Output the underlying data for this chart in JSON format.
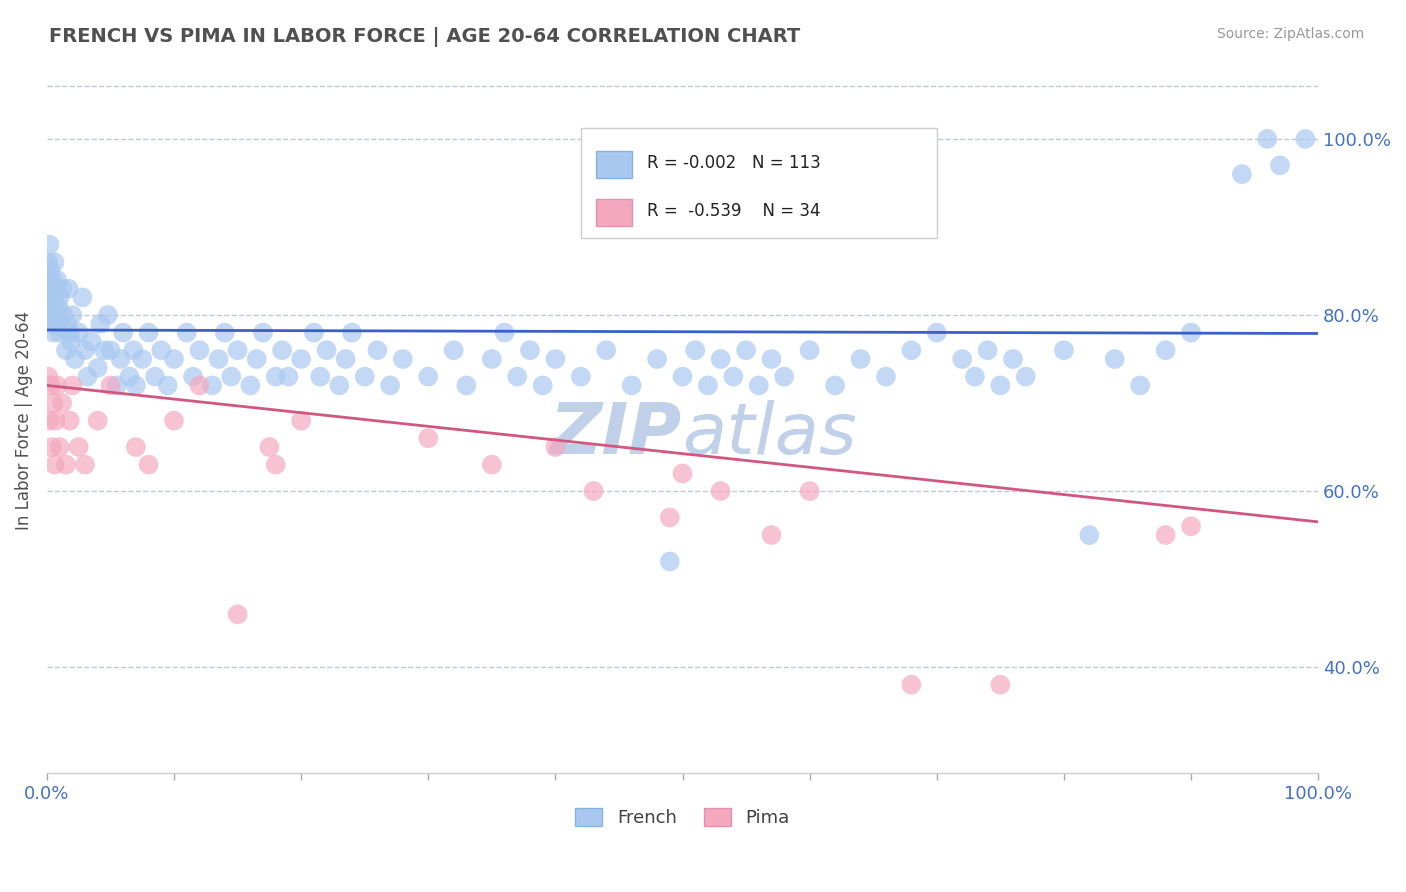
{
  "title": "FRENCH VS PIMA IN LABOR FORCE | AGE 20-64 CORRELATION CHART",
  "source_text": "Source: ZipAtlas.com",
  "ylabel": "In Labor Force | Age 20-64",
  "xlim": [
    0.0,
    1.0
  ],
  "ylim": [
    0.28,
    1.08
  ],
  "y_tick_vals_right": [
    0.4,
    0.6,
    0.8,
    1.0
  ],
  "y_tick_labels_right": [
    "40.0%",
    "60.0%",
    "80.0%",
    "100.0%"
  ],
  "legend_french_label": "French",
  "legend_pima_label": "Pima",
  "french_color": "#a8c8f0",
  "pima_color": "#f4a8c0",
  "french_line_color": "#3a5fc8",
  "pima_line_color": "#d05880",
  "background_color": "#ffffff",
  "title_color": "#505050",
  "watermark_color": "#c0d0e8",
  "gridline_color": "#c0c8d8",
  "gridline_style": "--",
  "french_points": [
    [
      0.001,
      0.84
    ],
    [
      0.001,
      0.82
    ],
    [
      0.001,
      0.86
    ],
    [
      0.002,
      0.8
    ],
    [
      0.002,
      0.83
    ],
    [
      0.002,
      0.88
    ],
    [
      0.003,
      0.82
    ],
    [
      0.003,
      0.85
    ],
    [
      0.003,
      0.79
    ],
    [
      0.004,
      0.84
    ],
    [
      0.004,
      0.81
    ],
    [
      0.005,
      0.83
    ],
    [
      0.005,
      0.78
    ],
    [
      0.006,
      0.82
    ],
    [
      0.006,
      0.86
    ],
    [
      0.007,
      0.8
    ],
    [
      0.007,
      0.83
    ],
    [
      0.008,
      0.79
    ],
    [
      0.008,
      0.84
    ],
    [
      0.009,
      0.81
    ],
    [
      0.01,
      0.82
    ],
    [
      0.01,
      0.78
    ],
    [
      0.012,
      0.83
    ],
    [
      0.013,
      0.8
    ],
    [
      0.015,
      0.76
    ],
    [
      0.016,
      0.79
    ],
    [
      0.017,
      0.83
    ],
    [
      0.018,
      0.78
    ],
    [
      0.019,
      0.77
    ],
    [
      0.02,
      0.8
    ],
    [
      0.022,
      0.75
    ],
    [
      0.025,
      0.78
    ],
    [
      0.028,
      0.82
    ],
    [
      0.03,
      0.76
    ],
    [
      0.032,
      0.73
    ],
    [
      0.035,
      0.77
    ],
    [
      0.04,
      0.74
    ],
    [
      0.042,
      0.79
    ],
    [
      0.045,
      0.76
    ],
    [
      0.048,
      0.8
    ],
    [
      0.05,
      0.76
    ],
    [
      0.055,
      0.72
    ],
    [
      0.058,
      0.75
    ],
    [
      0.06,
      0.78
    ],
    [
      0.065,
      0.73
    ],
    [
      0.068,
      0.76
    ],
    [
      0.07,
      0.72
    ],
    [
      0.075,
      0.75
    ],
    [
      0.08,
      0.78
    ],
    [
      0.085,
      0.73
    ],
    [
      0.09,
      0.76
    ],
    [
      0.095,
      0.72
    ],
    [
      0.1,
      0.75
    ],
    [
      0.11,
      0.78
    ],
    [
      0.115,
      0.73
    ],
    [
      0.12,
      0.76
    ],
    [
      0.13,
      0.72
    ],
    [
      0.135,
      0.75
    ],
    [
      0.14,
      0.78
    ],
    [
      0.145,
      0.73
    ],
    [
      0.15,
      0.76
    ],
    [
      0.16,
      0.72
    ],
    [
      0.165,
      0.75
    ],
    [
      0.17,
      0.78
    ],
    [
      0.18,
      0.73
    ],
    [
      0.185,
      0.76
    ],
    [
      0.19,
      0.73
    ],
    [
      0.2,
      0.75
    ],
    [
      0.21,
      0.78
    ],
    [
      0.215,
      0.73
    ],
    [
      0.22,
      0.76
    ],
    [
      0.23,
      0.72
    ],
    [
      0.235,
      0.75
    ],
    [
      0.24,
      0.78
    ],
    [
      0.25,
      0.73
    ],
    [
      0.26,
      0.76
    ],
    [
      0.27,
      0.72
    ],
    [
      0.28,
      0.75
    ],
    [
      0.3,
      0.73
    ],
    [
      0.32,
      0.76
    ],
    [
      0.33,
      0.72
    ],
    [
      0.35,
      0.75
    ],
    [
      0.36,
      0.78
    ],
    [
      0.37,
      0.73
    ],
    [
      0.38,
      0.76
    ],
    [
      0.39,
      0.72
    ],
    [
      0.4,
      0.75
    ],
    [
      0.42,
      0.73
    ],
    [
      0.44,
      0.76
    ],
    [
      0.46,
      0.72
    ],
    [
      0.48,
      0.75
    ],
    [
      0.49,
      0.52
    ],
    [
      0.5,
      0.73
    ],
    [
      0.51,
      0.76
    ],
    [
      0.52,
      0.72
    ],
    [
      0.53,
      0.75
    ],
    [
      0.54,
      0.73
    ],
    [
      0.55,
      0.76
    ],
    [
      0.56,
      0.72
    ],
    [
      0.57,
      0.75
    ],
    [
      0.58,
      0.73
    ],
    [
      0.6,
      0.76
    ],
    [
      0.62,
      0.72
    ],
    [
      0.64,
      0.75
    ],
    [
      0.66,
      0.73
    ],
    [
      0.68,
      0.76
    ],
    [
      0.7,
      0.78
    ],
    [
      0.72,
      0.75
    ],
    [
      0.73,
      0.73
    ],
    [
      0.74,
      0.76
    ],
    [
      0.75,
      0.72
    ],
    [
      0.76,
      0.75
    ],
    [
      0.77,
      0.73
    ],
    [
      0.8,
      0.76
    ],
    [
      0.82,
      0.55
    ],
    [
      0.84,
      0.75
    ],
    [
      0.86,
      0.72
    ],
    [
      0.88,
      0.76
    ],
    [
      0.9,
      0.78
    ],
    [
      0.94,
      0.96
    ],
    [
      0.96,
      1.0
    ],
    [
      0.97,
      0.97
    ],
    [
      0.99,
      1.0
    ]
  ],
  "pima_points": [
    [
      0.001,
      0.73
    ],
    [
      0.002,
      0.68
    ],
    [
      0.003,
      0.72
    ],
    [
      0.004,
      0.65
    ],
    [
      0.005,
      0.7
    ],
    [
      0.006,
      0.63
    ],
    [
      0.007,
      0.68
    ],
    [
      0.008,
      0.72
    ],
    [
      0.01,
      0.65
    ],
    [
      0.012,
      0.7
    ],
    [
      0.015,
      0.63
    ],
    [
      0.018,
      0.68
    ],
    [
      0.02,
      0.72
    ],
    [
      0.025,
      0.65
    ],
    [
      0.03,
      0.63
    ],
    [
      0.04,
      0.68
    ],
    [
      0.05,
      0.72
    ],
    [
      0.07,
      0.65
    ],
    [
      0.08,
      0.63
    ],
    [
      0.1,
      0.68
    ],
    [
      0.12,
      0.72
    ],
    [
      0.15,
      0.46
    ],
    [
      0.175,
      0.65
    ],
    [
      0.18,
      0.63
    ],
    [
      0.2,
      0.68
    ],
    [
      0.3,
      0.66
    ],
    [
      0.35,
      0.63
    ],
    [
      0.4,
      0.65
    ],
    [
      0.43,
      0.6
    ],
    [
      0.49,
      0.57
    ],
    [
      0.5,
      0.62
    ],
    [
      0.53,
      0.6
    ],
    [
      0.57,
      0.55
    ],
    [
      0.6,
      0.6
    ],
    [
      0.68,
      0.38
    ],
    [
      0.75,
      0.38
    ],
    [
      0.88,
      0.55
    ],
    [
      0.9,
      0.56
    ]
  ],
  "french_line_y0": 0.783,
  "french_line_y1": 0.779,
  "pima_line_y0": 0.72,
  "pima_line_y1": 0.565
}
